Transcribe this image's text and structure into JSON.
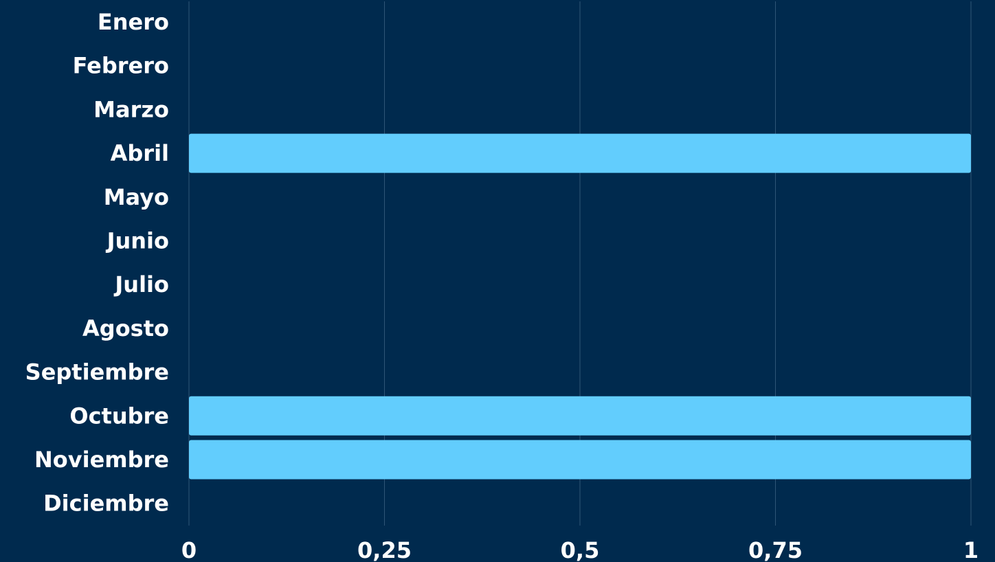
{
  "chart_data": {
    "type": "bar",
    "orientation": "horizontal",
    "categories": [
      "Enero",
      "Febrero",
      "Marzo",
      "Abril",
      "Mayo",
      "Junio",
      "Julio",
      "Agosto",
      "Septiembre",
      "Octubre",
      "Noviembre",
      "Diciembre"
    ],
    "values": [
      0,
      0,
      0,
      1,
      0,
      0,
      0,
      0,
      0,
      1,
      1,
      0
    ],
    "xlim": [
      0,
      1
    ],
    "xticks": [
      0,
      0.25,
      0.5,
      0.75,
      1
    ],
    "xtick_labels": [
      "0",
      "0,25",
      "0,5",
      "0,75",
      "1"
    ],
    "grid": "vertical",
    "colors": {
      "background": "#002a4e",
      "bar": "#62cdfd",
      "grid": "#2f5577",
      "text": "#ffffff"
    }
  }
}
